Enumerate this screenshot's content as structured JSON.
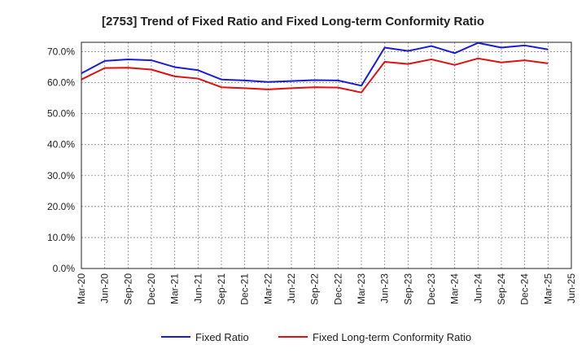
{
  "chart_data": {
    "type": "line",
    "title": "[2753]  Trend of Fixed Ratio and Fixed Long-term Conformity Ratio",
    "xlabel": "",
    "ylabel": "",
    "ylim": [
      0,
      73
    ],
    "yticks": [
      "0.0%",
      "10.0%",
      "20.0%",
      "30.0%",
      "40.0%",
      "50.0%",
      "60.0%",
      "70.0%"
    ],
    "ytick_values": [
      0,
      10,
      20,
      30,
      40,
      50,
      60,
      70
    ],
    "categories": [
      "Mar-20",
      "Jun-20",
      "Sep-20",
      "Dec-20",
      "Mar-21",
      "Jun-21",
      "Sep-21",
      "Dec-21",
      "Mar-22",
      "Jun-22",
      "Sep-22",
      "Dec-22",
      "Mar-23",
      "Jun-23",
      "Sep-23",
      "Dec-23",
      "Mar-24",
      "Jun-24",
      "Sep-24",
      "Dec-24",
      "Mar-25",
      "Jun-25"
    ],
    "grid": true,
    "legend_position": "bottom",
    "series": [
      {
        "name": "Fixed Ratio",
        "color": "#1a1adc",
        "values": [
          63.0,
          67.0,
          67.5,
          67.2,
          65.0,
          64.0,
          61.0,
          60.7,
          60.2,
          60.5,
          60.8,
          60.7,
          59.0,
          71.3,
          70.2,
          71.8,
          69.5,
          72.8,
          71.3,
          72.0,
          70.7,
          null
        ]
      },
      {
        "name": "Fixed Long-term Conformity Ratio",
        "color": "#e01010",
        "values": [
          61.0,
          64.7,
          64.8,
          64.2,
          62.0,
          61.3,
          58.5,
          58.2,
          57.8,
          58.2,
          58.5,
          58.4,
          56.8,
          66.7,
          66.0,
          67.5,
          65.7,
          67.8,
          66.5,
          67.2,
          66.2,
          null
        ]
      }
    ]
  }
}
